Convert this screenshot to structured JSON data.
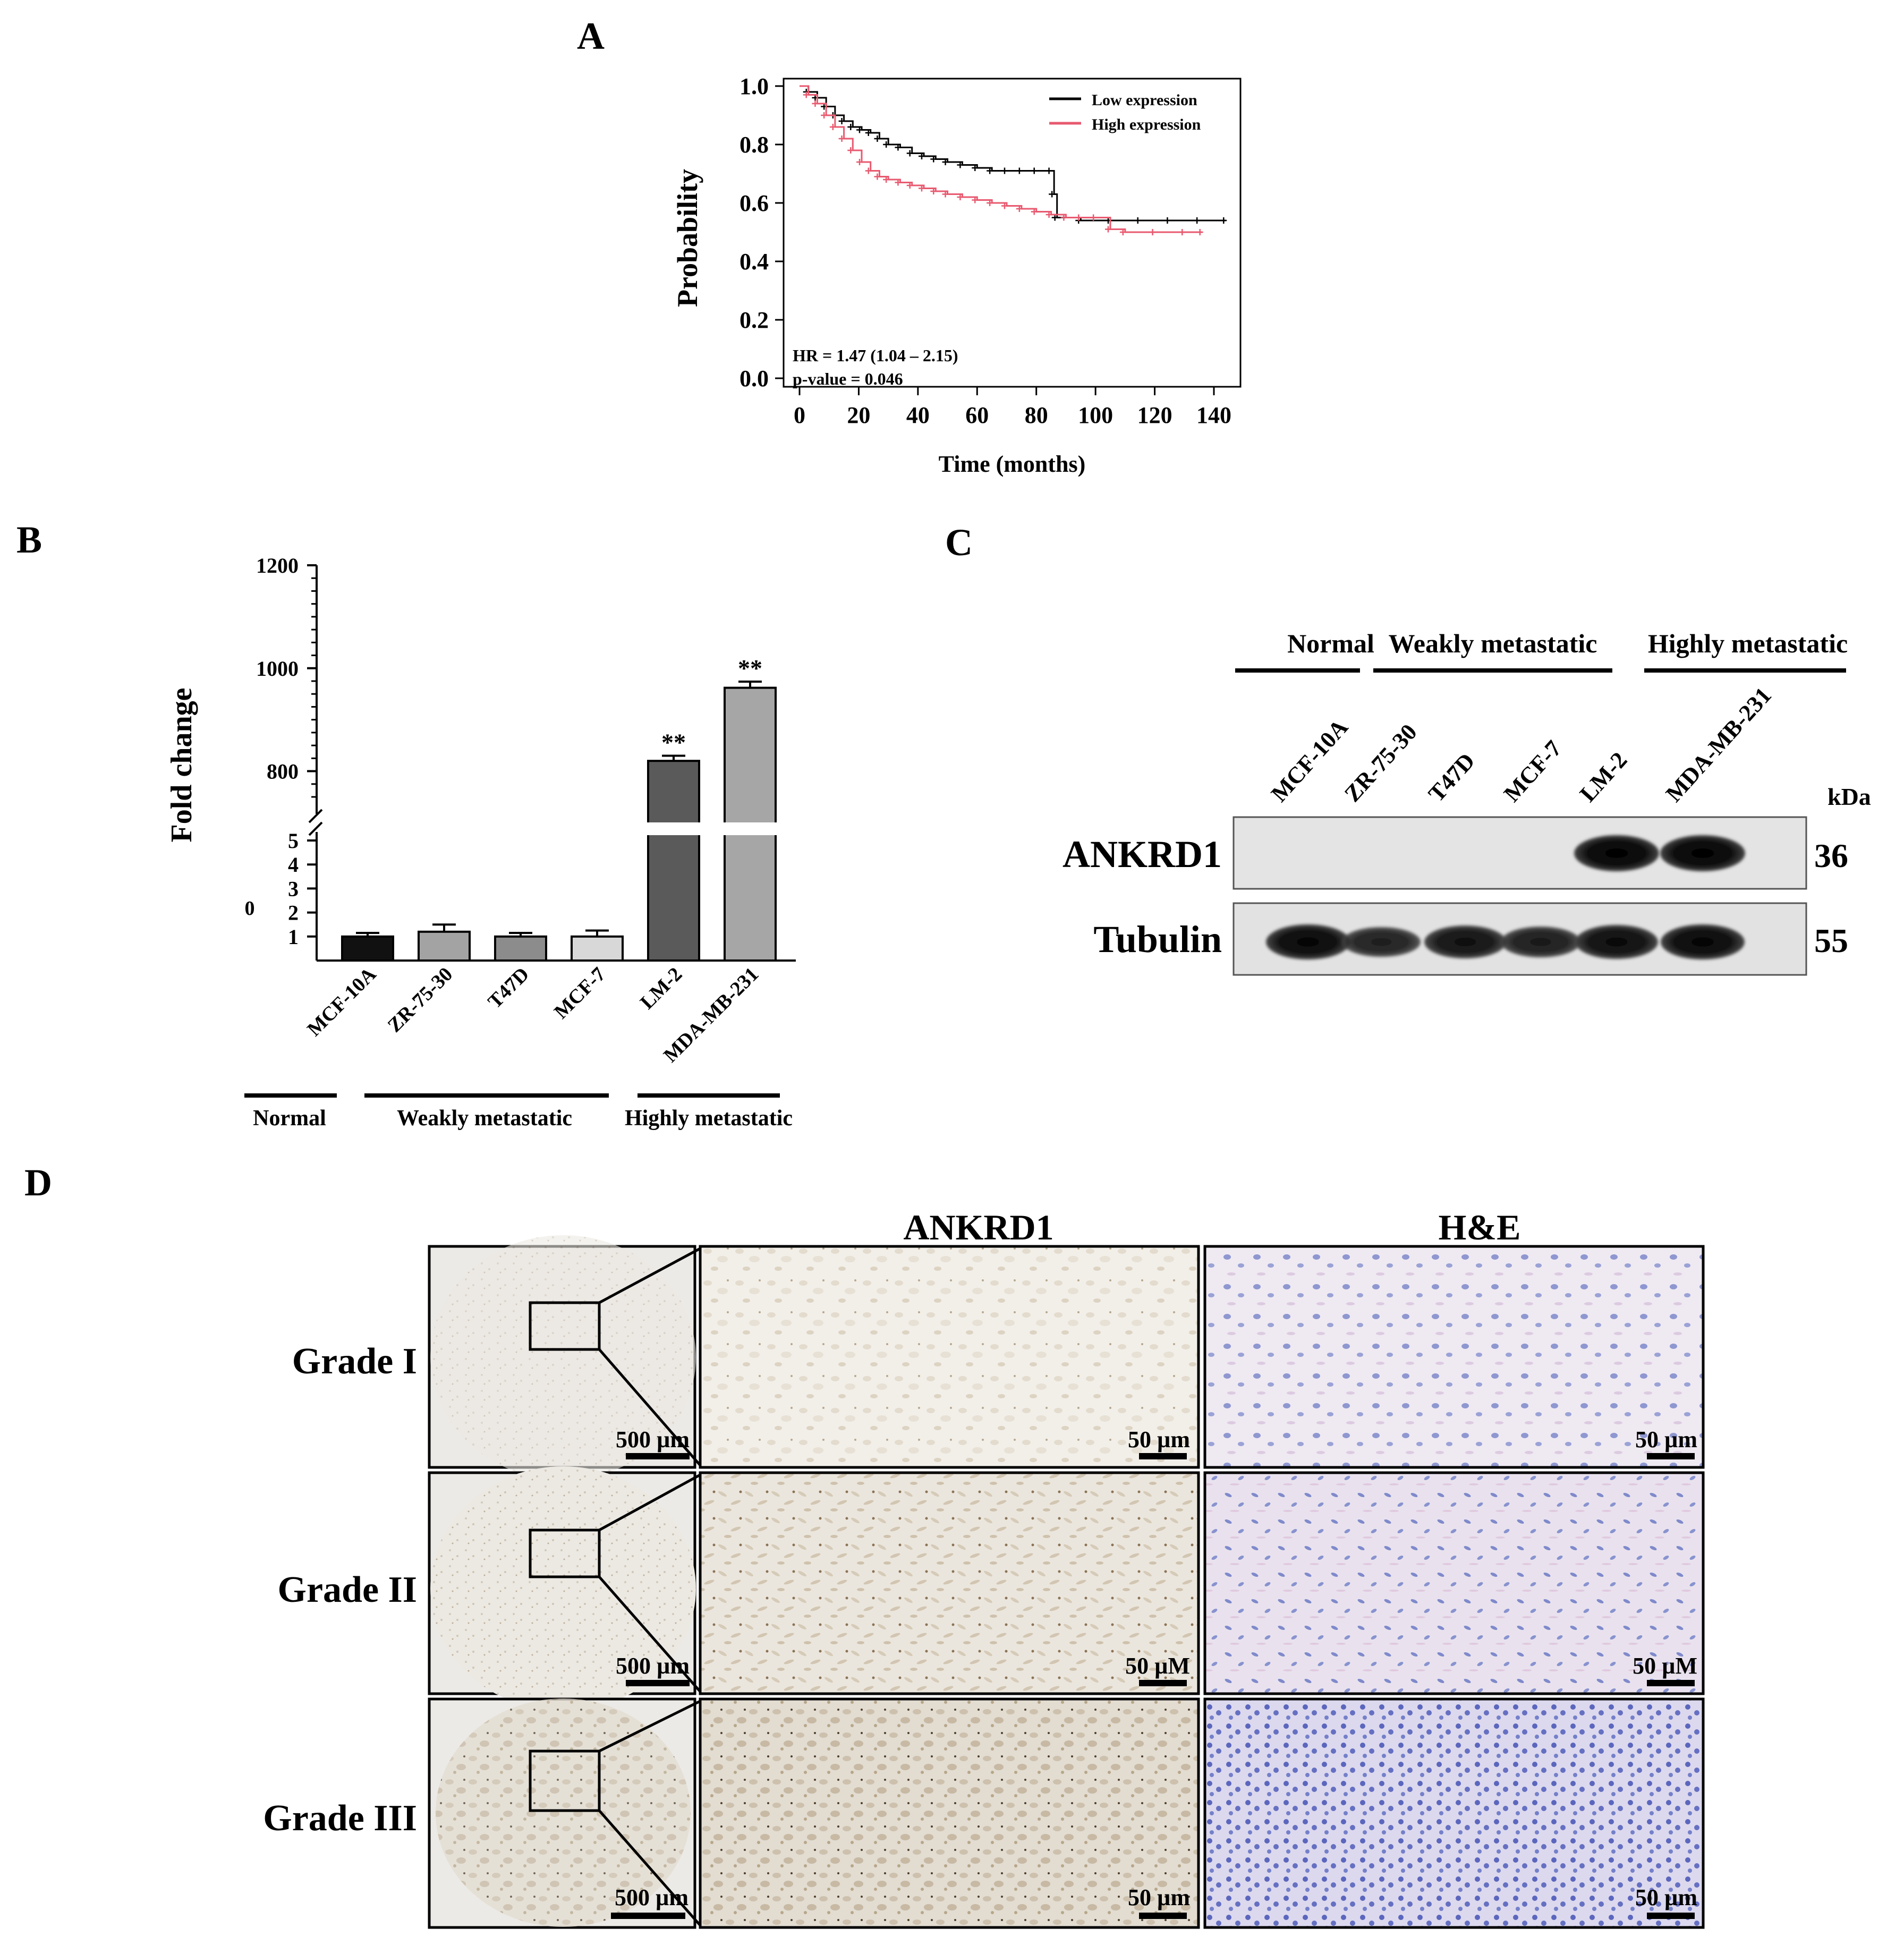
{
  "panel_labels": {
    "a": "A",
    "b": "B",
    "c": "C",
    "d": "D"
  },
  "chart_data": [
    {
      "type": "line",
      "panel": "A",
      "xlabel": "Time (months)",
      "ylabel": "Probability",
      "xlim": [
        0,
        145
      ],
      "ylim": [
        0,
        1.0
      ],
      "xticks": [
        "0",
        "20",
        "40",
        "60",
        "80",
        "100",
        "120",
        "140"
      ],
      "yticks": [
        "0.0",
        "0.2",
        "0.4",
        "0.6",
        "0.8",
        "1.0"
      ],
      "grid": false,
      "legend_position": "top-right",
      "colors": {
        "low": "#000000",
        "high": "#e8596f"
      },
      "annotations": [
        "HR = 1.47 (1.04 – 2.15)",
        "p-value = 0.046"
      ],
      "series": [
        {
          "name": "Low expression",
          "x": [
            0,
            3,
            6,
            9,
            12,
            15,
            18,
            21,
            24,
            27,
            30,
            34,
            38,
            42,
            46,
            50,
            55,
            60,
            65,
            70,
            75,
            80,
            85,
            86,
            87,
            95,
            105,
            115,
            125,
            135,
            144
          ],
          "y": [
            1.0,
            0.98,
            0.96,
            0.93,
            0.9,
            0.88,
            0.86,
            0.85,
            0.84,
            0.82,
            0.8,
            0.79,
            0.77,
            0.76,
            0.75,
            0.74,
            0.73,
            0.72,
            0.71,
            0.71,
            0.71,
            0.71,
            0.71,
            0.63,
            0.55,
            0.54,
            0.54,
            0.54,
            0.54,
            0.54,
            0.54
          ]
        },
        {
          "name": "High expression",
          "x": [
            0,
            3,
            6,
            9,
            12,
            15,
            18,
            21,
            24,
            27,
            30,
            34,
            38,
            42,
            46,
            50,
            55,
            60,
            65,
            70,
            75,
            80,
            85,
            90,
            95,
            100,
            105,
            110,
            120,
            130,
            136
          ],
          "y": [
            1.0,
            0.97,
            0.94,
            0.9,
            0.86,
            0.82,
            0.78,
            0.74,
            0.71,
            0.69,
            0.68,
            0.67,
            0.66,
            0.65,
            0.64,
            0.63,
            0.62,
            0.61,
            0.6,
            0.59,
            0.58,
            0.57,
            0.56,
            0.55,
            0.55,
            0.55,
            0.51,
            0.5,
            0.5,
            0.5,
            0.5
          ]
        }
      ]
    },
    {
      "type": "bar",
      "panel": "B",
      "ylabel": "Fold change",
      "categories": [
        "MCF-10A",
        "ZR-75-30",
        "T47D",
        "MCF-7",
        "LM-2",
        "MDA-MB-231"
      ],
      "values": [
        1.0,
        1.2,
        1.0,
        1.0,
        820,
        962
      ],
      "errors": [
        0.15,
        0.3,
        0.15,
        0.25,
        10,
        12
      ],
      "significance": [
        "",
        "",
        "",
        "",
        "**",
        "**"
      ],
      "bar_colors": [
        "#111111",
        "#a3a3a3",
        "#8c8c8c",
        "#d8d8d8",
        "#5a5a5a",
        "#a6a6a6"
      ],
      "lower_ticks": [
        "1",
        "2",
        "3",
        "4",
        "5"
      ],
      "upper_ticks": [
        "800",
        "1000",
        "1200"
      ],
      "lower_range": [
        0,
        5
      ],
      "upper_range": [
        750,
        1200
      ],
      "extra_label": "0",
      "groups": [
        "Normal",
        "Weakly metastatic",
        "Highly metastatic"
      ]
    }
  ],
  "western_blot": {
    "groups": [
      "Normal",
      "Weakly metastatic",
      "Highly metastatic"
    ],
    "lanes": [
      "MCF-10A",
      "ZR-75-30",
      "T47D",
      "MCF-7",
      "LM-2",
      "MDA-MB-231"
    ],
    "kda_label": "kDa",
    "rows": [
      {
        "protein": "ANKRD1",
        "kda": "36",
        "intensity": [
          0,
          0,
          0,
          0,
          1,
          1
        ]
      },
      {
        "protein": "Tubulin",
        "kda": "55",
        "intensity": [
          0.95,
          0.7,
          0.85,
          0.75,
          0.9,
          0.95
        ]
      }
    ]
  },
  "ihc": {
    "columns": [
      "ANKRD1",
      "H&E"
    ],
    "rows": [
      {
        "grade": "Grade I",
        "overview_scale": "500 µm",
        "ankrd1_scale": "50 µm",
        "he_scale": "50 µm"
      },
      {
        "grade": "Grade II",
        "overview_scale": "500 µm",
        "ankrd1_scale": "50 µM",
        "he_scale": "50 µM"
      },
      {
        "grade": "Grade III",
        "overview_scale": "500 µm",
        "ankrd1_scale": "50 µm",
        "he_scale": "50 µm"
      }
    ]
  }
}
